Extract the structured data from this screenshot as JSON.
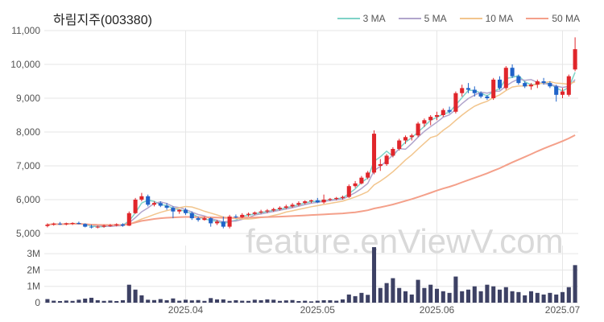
{
  "chart_data": {
    "type": "candlestick",
    "title": "하림지주(003380)",
    "watermark": "feature.enViewV.com",
    "legend": [
      {
        "name": "3 MA",
        "color": "#7fd3c8"
      },
      {
        "name": "5 MA",
        "color": "#b1a5cc"
      },
      {
        "name": "10 MA",
        "color": "#f2c58d"
      },
      {
        "name": "50 MA",
        "color": "#f4a08a"
      }
    ],
    "colors": {
      "up": "#e0262b",
      "down": "#1f63c9",
      "volume": "#3d4164",
      "grid": "#e6e6e6"
    },
    "price_axis": {
      "min": 5000,
      "max": 11000,
      "ticks": [
        5000,
        6000,
        7000,
        8000,
        9000,
        10000,
        11000
      ],
      "tick_labels": [
        "5,000",
        "6,000",
        "7,000",
        "8,000",
        "9,000",
        "10,000",
        "11,000"
      ]
    },
    "volume_axis": {
      "min": 0,
      "max": 3500000,
      "ticks": [
        0,
        1000000,
        2000000,
        3000000
      ],
      "tick_labels": [
        "0",
        "1M",
        "2M",
        "3M"
      ]
    },
    "x_ticks": [
      {
        "index": 22,
        "label": "2025.04"
      },
      {
        "index": 43,
        "label": "2025.05"
      },
      {
        "index": 62,
        "label": "2025.06"
      },
      {
        "index": 82,
        "label": "2025.07"
      }
    ],
    "candles": [
      [
        5220,
        5300,
        5180,
        5260
      ],
      [
        5260,
        5320,
        5230,
        5290
      ],
      [
        5290,
        5340,
        5250,
        5270
      ],
      [
        5270,
        5320,
        5240,
        5300
      ],
      [
        5300,
        5330,
        5250,
        5310
      ],
      [
        5310,
        5350,
        5270,
        5280
      ],
      [
        5280,
        5300,
        5180,
        5200
      ],
      [
        5200,
        5260,
        5150,
        5180
      ],
      [
        5180,
        5230,
        5150,
        5200
      ],
      [
        5200,
        5260,
        5170,
        5230
      ],
      [
        5230,
        5280,
        5200,
        5240
      ],
      [
        5240,
        5300,
        5210,
        5270
      ],
      [
        5270,
        5300,
        5200,
        5230
      ],
      [
        5230,
        5650,
        5220,
        5600
      ],
      [
        5600,
        6050,
        5580,
        6000
      ],
      [
        6000,
        6200,
        5950,
        6100
      ],
      [
        6100,
        6150,
        5800,
        5850
      ],
      [
        5850,
        5950,
        5800,
        5900
      ],
      [
        5900,
        5950,
        5780,
        5820
      ],
      [
        5820,
        5900,
        5700,
        5760
      ],
      [
        5760,
        5800,
        5450,
        5650
      ],
      [
        5650,
        5720,
        5580,
        5700
      ],
      [
        5700,
        5750,
        5550,
        5600
      ],
      [
        5600,
        5650,
        5400,
        5450
      ],
      [
        5450,
        5500,
        5350,
        5400
      ],
      [
        5400,
        5500,
        5380,
        5450
      ],
      [
        5450,
        5480,
        5200,
        5300
      ],
      [
        5300,
        5400,
        5250,
        5350
      ],
      [
        5350,
        5500,
        5150,
        5200
      ],
      [
        5200,
        5550,
        5150,
        5500
      ],
      [
        5500,
        5560,
        5450,
        5480
      ],
      [
        5480,
        5600,
        5450,
        5550
      ],
      [
        5550,
        5620,
        5500,
        5580
      ],
      [
        5580,
        5650,
        5540,
        5620
      ],
      [
        5620,
        5700,
        5580,
        5650
      ],
      [
        5650,
        5720,
        5600,
        5680
      ],
      [
        5680,
        5760,
        5640,
        5720
      ],
      [
        5720,
        5800,
        5680,
        5760
      ],
      [
        5760,
        5850,
        5720,
        5800
      ],
      [
        5800,
        5900,
        5760,
        5850
      ],
      [
        5850,
        5950,
        5810,
        5900
      ],
      [
        5900,
        5980,
        5860,
        5950
      ],
      [
        5950,
        6000,
        5900,
        5980
      ],
      [
        5980,
        6050,
        5900,
        5920
      ],
      [
        5920,
        6150,
        5880,
        6000
      ],
      [
        6000,
        6050,
        5960,
        6020
      ],
      [
        6020,
        6080,
        5980,
        6050
      ],
      [
        6050,
        6120,
        6000,
        6080
      ],
      [
        6080,
        6450,
        6050,
        6400
      ],
      [
        6400,
        6550,
        6350,
        6480
      ],
      [
        6480,
        6700,
        6450,
        6650
      ],
      [
        6650,
        6850,
        6600,
        6800
      ],
      [
        6800,
        8050,
        6750,
        7950
      ],
      [
        7000,
        7200,
        6850,
        7050
      ],
      [
        7050,
        7350,
        7000,
        7300
      ],
      [
        7300,
        7550,
        7250,
        7500
      ],
      [
        7500,
        7800,
        7450,
        7750
      ],
      [
        7750,
        7900,
        7650,
        7850
      ],
      [
        7850,
        7950,
        7750,
        7900
      ],
      [
        7900,
        8300,
        7850,
        8250
      ],
      [
        8250,
        8400,
        8150,
        8350
      ],
      [
        8350,
        8500,
        8200,
        8450
      ],
      [
        8450,
        8600,
        8350,
        8500
      ],
      [
        8500,
        8700,
        8450,
        8650
      ],
      [
        8650,
        8750,
        8550,
        8600
      ],
      [
        8600,
        9200,
        8550,
        9150
      ],
      [
        9150,
        9400,
        9050,
        9300
      ],
      [
        9300,
        9450,
        9150,
        9250
      ],
      [
        9250,
        9350,
        9050,
        9150
      ],
      [
        9150,
        9200,
        9000,
        9050
      ],
      [
        9050,
        9100,
        8950,
        9000
      ],
      [
        9000,
        9600,
        8950,
        9550
      ],
      [
        9550,
        9650,
        9250,
        9300
      ],
      [
        9300,
        9950,
        9250,
        9900
      ],
      [
        9900,
        10000,
        9600,
        9650
      ],
      [
        9650,
        9700,
        9400,
        9450
      ],
      [
        9450,
        9500,
        9300,
        9350
      ],
      [
        9350,
        9450,
        9250,
        9400
      ],
      [
        9400,
        9550,
        9300,
        9500
      ],
      [
        9500,
        9600,
        9400,
        9450
      ],
      [
        9450,
        9500,
        9300,
        9350
      ],
      [
        9350,
        9400,
        8900,
        9100
      ],
      [
        9100,
        9300,
        9000,
        9200
      ],
      [
        9100,
        9700,
        9050,
        9650
      ],
      [
        9850,
        10800,
        9800,
        10450
      ]
    ],
    "volume": [
      220000,
      120000,
      100000,
      130000,
      110000,
      180000,
      250000,
      300000,
      150000,
      110000,
      130000,
      100000,
      150000,
      1100000,
      800000,
      450000,
      180000,
      160000,
      220000,
      150000,
      260000,
      120000,
      180000,
      140000,
      160000,
      110000,
      280000,
      200000,
      200000,
      110000,
      150000,
      120000,
      110000,
      180000,
      150000,
      200000,
      180000,
      110000,
      140000,
      160000,
      100000,
      120000,
      80000,
      120000,
      150000,
      150000,
      120000,
      200000,
      500000,
      400000,
      600000,
      480000,
      3400000,
      900000,
      1200000,
      1500000,
      900000,
      700000,
      500000,
      1400000,
      900000,
      1100000,
      850000,
      700000,
      600000,
      1600000,
      700000,
      800000,
      1000000,
      700000,
      1100000,
      1000000,
      800000,
      950000,
      700000,
      650000,
      450000,
      700000,
      600000,
      500000,
      600000,
      500000,
      650000,
      950000,
      2300000
    ]
  }
}
